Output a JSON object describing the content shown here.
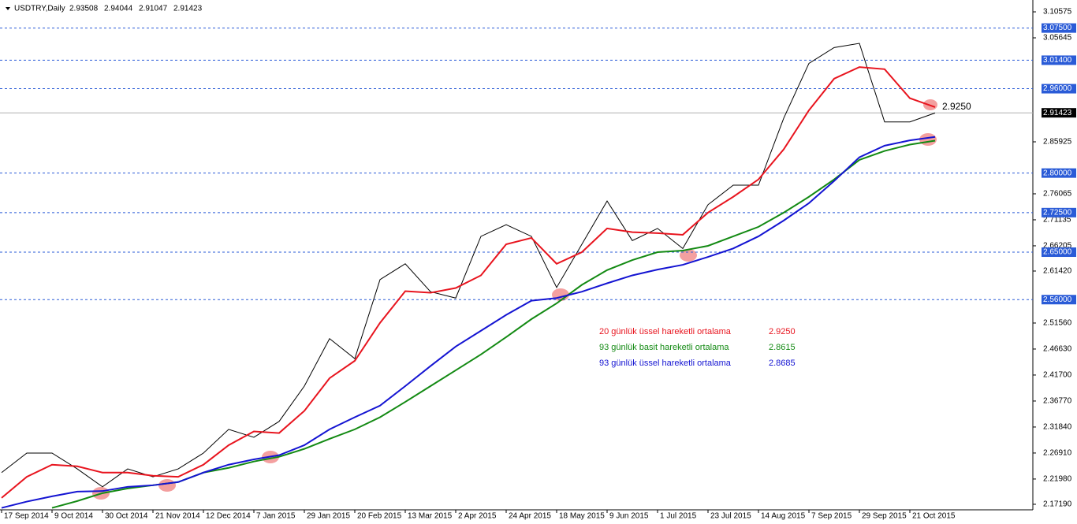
{
  "chart_data": {
    "type": "line",
    "symbol": "USDTRY,Daily",
    "ohlc": [
      2.93508,
      2.94044,
      2.91047,
      2.91423
    ],
    "categories": [
      "17 Sep 2014",
      null,
      "9 Oct 2014",
      null,
      "30 Oct 2014",
      null,
      "21 Nov 2014",
      null,
      "12 Dec 2014",
      null,
      "7 Jan 2015",
      null,
      "29 Jan 2015",
      null,
      "20 Feb 2015",
      null,
      "13 Mar 2015",
      null,
      "2 Apr 2015",
      null,
      "24 Apr 2015",
      null,
      "18 May 2015",
      null,
      "9 Jun 2015",
      null,
      "1 Jul 2015",
      null,
      "23 Jul 2015",
      null,
      "14 Aug 2015",
      null,
      "7 Sep 2015",
      null,
      "29 Sep 2015",
      null,
      "21 Oct 2015",
      null
    ],
    "price": {
      "color": "#000000",
      "values": [
        2.232,
        2.269,
        2.269,
        2.239,
        2.205,
        2.239,
        2.224,
        2.239,
        2.269,
        2.314,
        2.299,
        2.329,
        2.396,
        2.486,
        2.448,
        2.598,
        2.628,
        2.575,
        2.563,
        2.68,
        2.702,
        2.68,
        2.583,
        2.665,
        2.747,
        2.672,
        2.695,
        2.657,
        2.74,
        2.777,
        2.777,
        2.904,
        3.008,
        3.038,
        3.046,
        2.897,
        2.897,
        2.914
      ]
    },
    "series": [
      {
        "name": "20 günlük üssel hareketli ortalama",
        "color": "#e8141e",
        "last_label": "2.9250",
        "values": [
          2.184,
          2.224,
          2.247,
          2.244,
          2.232,
          2.232,
          2.226,
          2.224,
          2.247,
          2.284,
          2.31,
          2.307,
          2.349,
          2.411,
          2.444,
          2.516,
          2.576,
          2.573,
          2.582,
          2.606,
          2.665,
          2.677,
          2.628,
          2.65,
          2.695,
          2.688,
          2.686,
          2.683,
          2.725,
          2.755,
          2.788,
          2.845,
          2.919,
          2.979,
          3.001,
          2.997,
          2.942,
          2.925
        ]
      },
      {
        "name": "93 günlük basit hareketli ortalama",
        "color": "#138a13",
        "last_label": "2.8615",
        "values": [
          null,
          null,
          2.165,
          2.178,
          2.193,
          2.202,
          2.208,
          2.214,
          2.232,
          2.241,
          2.253,
          2.262,
          2.277,
          2.296,
          2.314,
          2.337,
          2.366,
          2.396,
          2.426,
          2.456,
          2.489,
          2.523,
          2.553,
          2.588,
          2.616,
          2.635,
          2.65,
          2.653,
          2.662,
          2.68,
          2.698,
          2.725,
          2.755,
          2.788,
          2.825,
          2.842,
          2.854,
          2.8615
        ]
      },
      {
        "name": "93 günlük üssel hareketli ortalama",
        "color": "#1414d2",
        "last_label": "2.8685",
        "values": [
          2.165,
          2.177,
          2.187,
          2.196,
          2.197,
          2.205,
          2.208,
          2.214,
          2.232,
          2.247,
          2.257,
          2.265,
          2.284,
          2.314,
          2.337,
          2.359,
          2.396,
          2.434,
          2.471,
          2.501,
          2.531,
          2.558,
          2.563,
          2.575,
          2.591,
          2.606,
          2.617,
          2.626,
          2.641,
          2.657,
          2.68,
          2.71,
          2.743,
          2.785,
          2.83,
          2.852,
          2.862,
          2.8685
        ]
      }
    ],
    "ylim": [
      2.1614,
      3.1282
    ],
    "yticks": [
      3.10575,
      3.05645,
      2.85925,
      2.76065,
      2.71135,
      2.66205,
      {
        "value": 2.6142,
        "label": "2.61420"
      },
      {
        "value": 2.5156,
        "label": "2.51560"
      },
      {
        "value": 2.4663,
        "label": "2.46630"
      },
      {
        "value": 2.417,
        "label": "2.41700"
      },
      {
        "value": 2.3677,
        "label": "2.36770"
      },
      {
        "value": 2.3184,
        "label": "2.31840"
      },
      {
        "value": 2.2691,
        "label": "2.26910"
      },
      {
        "value": 2.2198,
        "label": "2.21980"
      },
      {
        "value": 2.1719,
        "label": "2.17190"
      }
    ],
    "levels": [
      {
        "value": 3.075,
        "label": "3.07500"
      },
      {
        "value": 3.014,
        "label": "3.01400"
      },
      {
        "value": 2.96,
        "label": "2.96000"
      },
      {
        "value": 2.8,
        "label": "2.80000"
      },
      {
        "value": 2.725,
        "label": "2.72500"
      },
      {
        "value": 2.65,
        "label": "2.65000"
      },
      {
        "value": 2.56,
        "label": "2.56000"
      }
    ],
    "level_color": "#2a5bd7",
    "current_price": 2.91423,
    "price_note": {
      "value": 2.925,
      "label": "2.9250"
    }
  }
}
